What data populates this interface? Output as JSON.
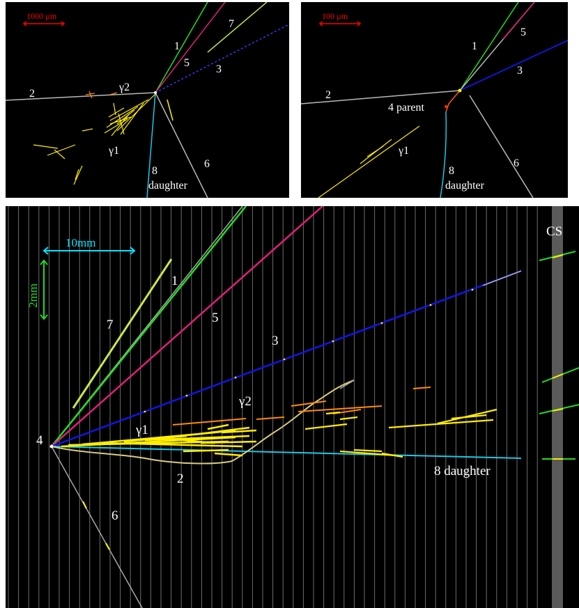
{
  "top_left": {
    "scale_label": "1000 µm",
    "labels": {
      "t1": "1",
      "t2": "2",
      "t3": "3",
      "t5": "5",
      "t6": "6",
      "t7": "7",
      "t8": "8",
      "daughter": "daughter",
      "gamma1": "γ1",
      "gamma2": "γ2"
    }
  },
  "top_right": {
    "scale_label": "100 µm",
    "labels": {
      "t1": "1",
      "t2": "2",
      "t3": "3",
      "t5": "5",
      "t6": "6",
      "parent": "4 parent",
      "t8": "8",
      "daughter": "daughter",
      "gamma1": "γ1"
    }
  },
  "bottom": {
    "scale_h": "10mm",
    "scale_v": "2mm",
    "labels": {
      "cs": "CS",
      "t1": "1",
      "t2": "2",
      "t3": "3",
      "t4": "4",
      "t5": "5",
      "t6": "6",
      "t7": "7",
      "gamma1": "γ1",
      "gamma2": "γ2",
      "daughter8": "8 daughter"
    }
  },
  "colors": {
    "background": "#000000",
    "grid": "#6e6e6e",
    "track_green": "#22dd22",
    "track_magenta": "#e0207a",
    "track_blue": "#1414e6",
    "track_gray": "#b9b9b9",
    "track_yellow": "#ffee00",
    "track_orange": "#ff8c00",
    "track_cyan": "#1ec8e6",
    "scale_red": "#ff0000",
    "scale_cyan": "#00e5ff",
    "scale_green": "#22dd22",
    "text": "#ffffff",
    "cs_band": "#5a5a5a"
  }
}
